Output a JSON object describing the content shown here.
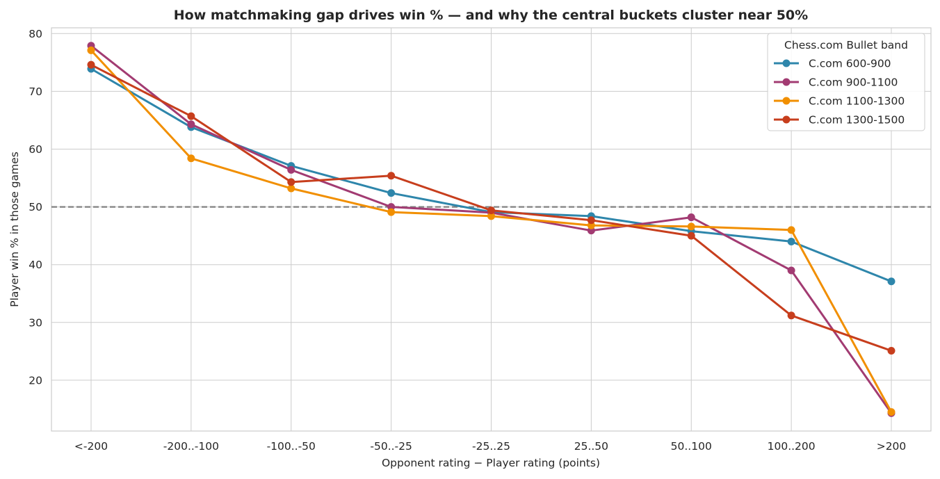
{
  "chart_data": {
    "type": "line",
    "title": "How matchmaking gap drives win % — and why the central buckets cluster near 50%",
    "xlabel": "Opponent rating − Player rating (points)",
    "ylabel": "Player win % in those games",
    "categories": [
      "<-200",
      "-200..-100",
      "-100..-50",
      "-50..-25",
      "-25..25",
      "25..50",
      "50..100",
      "100..200",
      ">200"
    ],
    "ylim": [
      11.2,
      81.0
    ],
    "yticks": [
      20,
      30,
      40,
      50,
      60,
      70,
      80
    ],
    "reference_line": 50,
    "grid": true,
    "legend": {
      "title": "Chess.com Bullet band",
      "placement": "top-right"
    },
    "series": [
      {
        "name": "C.com 600-900",
        "color": "#2e86ab",
        "values": [
          73.9,
          63.8,
          57.1,
          52.4,
          49.1,
          48.4,
          45.8,
          44.0,
          37.1
        ]
      },
      {
        "name": "C.com 900-1100",
        "color": "#a23b72",
        "values": [
          77.9,
          64.3,
          56.4,
          50.0,
          49.0,
          45.9,
          48.2,
          39.0,
          14.3
        ]
      },
      {
        "name": "C.com 1100-1300",
        "color": "#f18f01",
        "values": [
          77.1,
          58.4,
          53.2,
          49.1,
          48.4,
          46.8,
          46.6,
          46.0,
          14.5
        ]
      },
      {
        "name": "C.com 1300-1500",
        "color": "#c73e1d",
        "values": [
          74.6,
          65.7,
          54.3,
          55.4,
          49.4,
          47.7,
          45.0,
          31.2,
          25.1
        ]
      }
    ]
  }
}
